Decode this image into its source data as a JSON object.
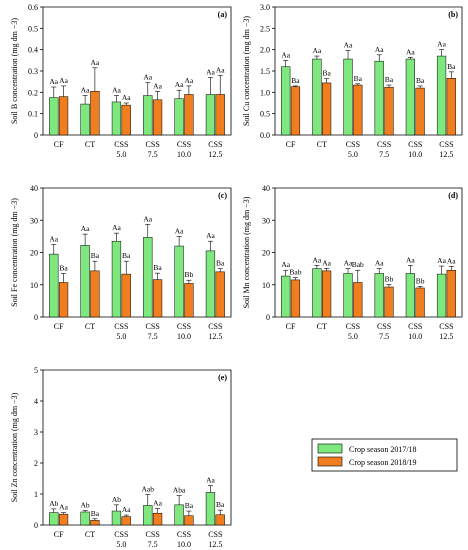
{
  "legend": [
    {
      "name": "Crop season 2017/18",
      "color": "#7ee87e"
    },
    {
      "name": "Crop season 2018/19",
      "color": "#f07d1e"
    }
  ],
  "chart_data": [
    {
      "type": "bar",
      "panel": "(a)",
      "ylabel": "Soil B concentration (mg dm −3)",
      "ylim": [
        0,
        0.6
      ],
      "yticks": [
        "0",
        "0.1",
        "0.2",
        "0.3",
        "0.4",
        "0.5",
        "0.6"
      ],
      "categories": [
        [
          "CF"
        ],
        [
          "CT"
        ],
        [
          "CSS",
          "5.0"
        ],
        [
          "CSS",
          "7.5"
        ],
        [
          "CSS",
          "10.0"
        ],
        [
          "CSS",
          "12.5"
        ]
      ],
      "series": [
        {
          "name": "Crop season 2017/18",
          "values": [
            0.175,
            0.145,
            0.155,
            0.185,
            0.17,
            0.19
          ],
          "errors": [
            0.05,
            0.04,
            0.03,
            0.06,
            0.04,
            0.08
          ],
          "labels": [
            "Aa",
            "Aa",
            "Aa",
            "Aa",
            "Aa",
            "Aa"
          ]
        },
        {
          "name": "Crop season 2018/19",
          "values": [
            0.18,
            0.205,
            0.14,
            0.165,
            0.19,
            0.19
          ],
          "errors": [
            0.05,
            0.11,
            0.01,
            0.04,
            0.04,
            0.09
          ],
          "labels": [
            "Aa",
            "Aa",
            "Aa",
            "Aa",
            "Aa",
            "Aa"
          ]
        }
      ]
    },
    {
      "type": "bar",
      "panel": "(b)",
      "ylabel": "Soil Cu concentration (mg dm −3)",
      "ylim": [
        0,
        3.0
      ],
      "yticks": [
        "0.0",
        "0.5",
        "1.0",
        "1.5",
        "2.0",
        "2.5",
        "3.0"
      ],
      "categories": [
        [
          "CF"
        ],
        [
          "CT"
        ],
        [
          "CSS",
          "5.0"
        ],
        [
          "CSS",
          "7.5"
        ],
        [
          "CSS",
          "10.0"
        ],
        [
          "CSS",
          "12.5"
        ]
      ],
      "series": [
        {
          "name": "Crop season 2017/18",
          "values": [
            1.6,
            1.78,
            1.78,
            1.73,
            1.78,
            1.85
          ],
          "errors": [
            0.15,
            0.07,
            0.2,
            0.15,
            0.04,
            0.15
          ],
          "labels": [
            "Aa",
            "Aa",
            "Aa",
            "Aa",
            "Aa",
            "Aa"
          ]
        },
        {
          "name": "Crop season 2018/19",
          "values": [
            1.13,
            1.22,
            1.17,
            1.12,
            1.1,
            1.33
          ],
          "errors": [
            0.02,
            0.1,
            0.03,
            0.05,
            0.05,
            0.15
          ],
          "labels": [
            "Ba",
            "Ba",
            "Ba",
            "Ba",
            "Ba",
            "Ba"
          ]
        }
      ]
    },
    {
      "type": "bar",
      "panel": "(c)",
      "ylabel": "Soil Fe concentration (mg dm −3)",
      "ylim": [
        0,
        40
      ],
      "yticks": [
        "0",
        "10",
        "20",
        "30",
        "40"
      ],
      "categories": [
        [
          "CF"
        ],
        [
          "CT"
        ],
        [
          "CSS",
          "5.0"
        ],
        [
          "CSS",
          "7.5"
        ],
        [
          "CSS",
          "10.0"
        ],
        [
          "CSS",
          "12.5"
        ]
      ],
      "series": [
        {
          "name": "Crop season 2017/18",
          "values": [
            19.5,
            22.2,
            23.5,
            24.7,
            22.0,
            20.5
          ],
          "errors": [
            3.0,
            3.5,
            2.5,
            4.0,
            3.0,
            3.0
          ],
          "labels": [
            "Aa",
            "Aa",
            "Aa",
            "Aa",
            "Aa",
            "Aa"
          ]
        },
        {
          "name": "Crop season 2018/19",
          "values": [
            10.7,
            14.3,
            13.3,
            11.6,
            10.4,
            14.0
          ],
          "errors": [
            2.8,
            3.0,
            4.0,
            2.0,
            1.0,
            1.0
          ],
          "labels": [
            "Ba",
            "Ba",
            "Ba",
            "Ba",
            "Bb",
            "Ba"
          ]
        }
      ]
    },
    {
      "type": "bar",
      "panel": "(d)",
      "ylabel": "Soil Mn concentration (mg dm −3)",
      "ylim": [
        0,
        40
      ],
      "yticks": [
        "0",
        "10",
        "20",
        "30",
        "40"
      ],
      "categories": [
        [
          "CF"
        ],
        [
          "CT"
        ],
        [
          "CSS",
          "5.0"
        ],
        [
          "CSS",
          "7.5"
        ],
        [
          "CSS",
          "10.0"
        ],
        [
          "CSS",
          "12.5"
        ]
      ],
      "series": [
        {
          "name": "Crop season 2017/18",
          "values": [
            12.7,
            15.0,
            13.5,
            13.5,
            13.5,
            13.3
          ],
          "errors": [
            1.8,
            1.0,
            1.5,
            1.5,
            2.5,
            2.5
          ],
          "labels": [
            "Aa",
            "Aa",
            "Aa",
            "Aa",
            "Aa",
            "Aa"
          ]
        },
        {
          "name": "Crop season 2018/19",
          "values": [
            11.5,
            14.3,
            10.7,
            9.3,
            9.0,
            14.5
          ],
          "errors": [
            0.7,
            0.8,
            3.8,
            0.8,
            0.5,
            1.2
          ],
          "labels": [
            "Bab",
            "Aa",
            "Bab",
            "Bb",
            "Bb",
            "Aa"
          ]
        }
      ]
    },
    {
      "type": "bar",
      "panel": "(e)",
      "ylabel": "Soil Zn concentration (mg dm −3)",
      "ylim": [
        0,
        5
      ],
      "yticks": [
        "0",
        "1",
        "2",
        "3",
        "4",
        "5"
      ],
      "categories": [
        [
          "CF"
        ],
        [
          "CT"
        ],
        [
          "CSS",
          "5.0"
        ],
        [
          "CSS",
          "7.5"
        ],
        [
          "CSS",
          "10.0"
        ],
        [
          "CSS",
          "12.5"
        ]
      ],
      "series": [
        {
          "name": "Crop season 2017/18",
          "values": [
            0.4,
            0.42,
            0.45,
            0.63,
            0.65,
            1.05
          ],
          "errors": [
            0.12,
            0.05,
            0.2,
            0.35,
            0.3,
            0.22
          ],
          "labels": [
            "Ab",
            "Ab",
            "Ab",
            "Aab",
            "Aba",
            "Aa"
          ]
        },
        {
          "name": "Crop season 2018/19",
          "values": [
            0.35,
            0.15,
            0.27,
            0.38,
            0.3,
            0.33
          ],
          "errors": [
            0.05,
            0.05,
            0.05,
            0.15,
            0.15,
            0.15
          ],
          "labels": [
            "Aa",
            "Ba",
            "Aa",
            "Aa",
            "Ba",
            "Ba"
          ]
        }
      ]
    }
  ]
}
